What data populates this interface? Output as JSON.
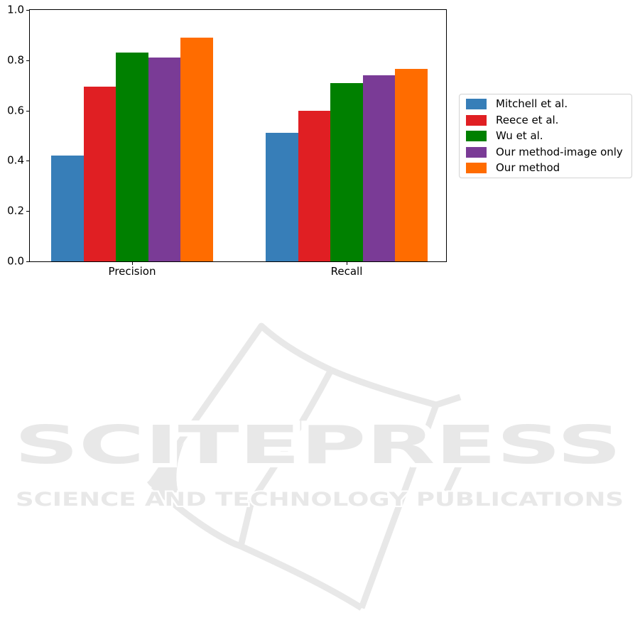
{
  "watermark": {
    "logo_text": "SCITEPRESS",
    "tagline": "SCIENCE AND TECHNOLOGY PUBLICATIONS",
    "color": "#e8e8e8"
  },
  "chart_data": {
    "type": "bar",
    "title": "",
    "xlabel": "",
    "ylabel": "",
    "categories": [
      "Precision",
      "Recall"
    ],
    "series": [
      {
        "name": "Mitchell et al.",
        "color": "#377eb8",
        "values": [
          0.42,
          0.51
        ]
      },
      {
        "name": "Reece et al.",
        "color": "#e01f23",
        "values": [
          0.695,
          0.6
        ]
      },
      {
        "name": "Wu et al.",
        "color": "#008000",
        "values": [
          0.83,
          0.71
        ]
      },
      {
        "name": "Our method-image only",
        "color": "#7a3b96",
        "values": [
          0.81,
          0.74
        ]
      },
      {
        "name": "Our method",
        "color": "#ff6c00",
        "values": [
          0.89,
          0.765
        ]
      }
    ],
    "ylim": [
      0.0,
      1.0
    ],
    "yticks": [
      0.0,
      0.2,
      0.4,
      0.6,
      0.8,
      1.0
    ],
    "grid": false,
    "legend_position": "right outside axes, vertically centered"
  }
}
